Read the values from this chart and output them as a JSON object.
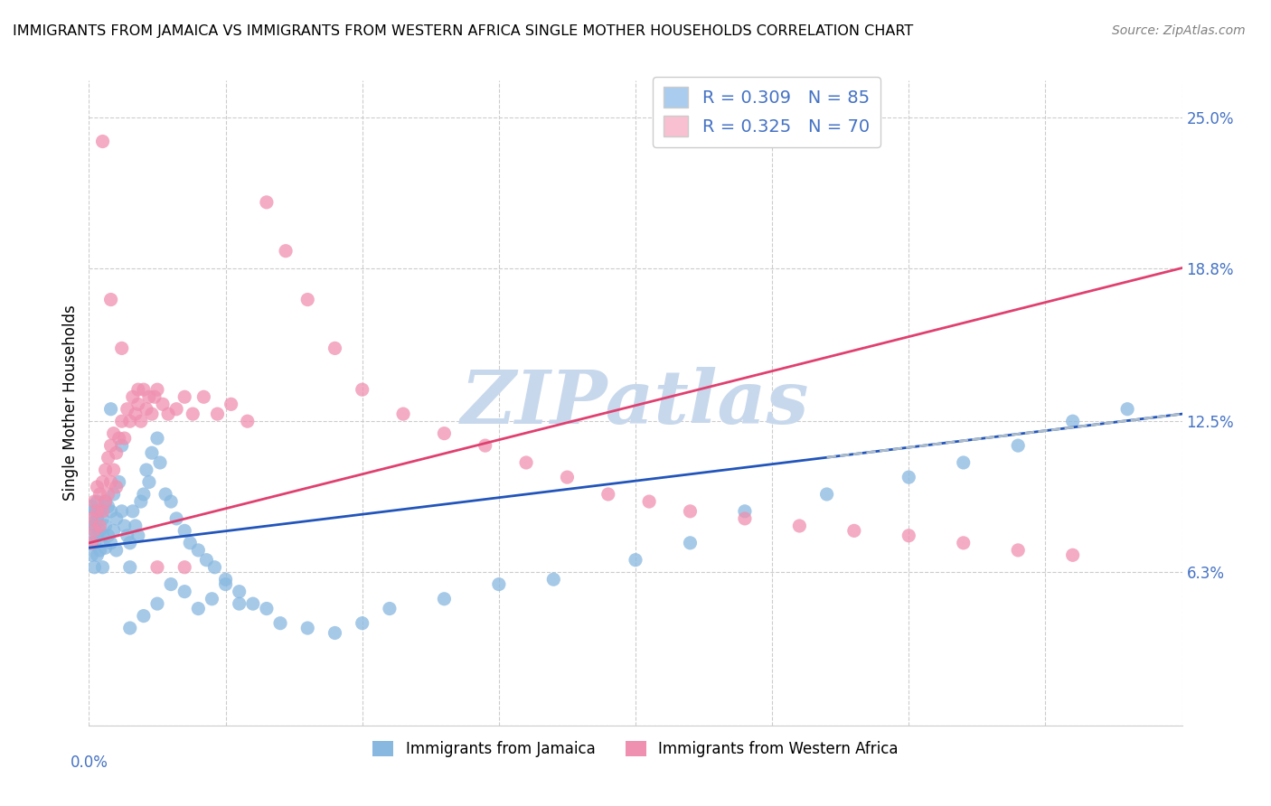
{
  "title": "IMMIGRANTS FROM JAMAICA VS IMMIGRANTS FROM WESTERN AFRICA SINGLE MOTHER HOUSEHOLDS CORRELATION CHART",
  "source": "Source: ZipAtlas.com",
  "ylabel": "Single Mother Households",
  "xlim": [
    0.0,
    0.4
  ],
  "ylim": [
    0.0,
    0.265
  ],
  "jamaica_scatter_color": "#88b8e0",
  "western_africa_scatter_color": "#f090b0",
  "jamaica_legend_color": "#aaccee",
  "western_africa_legend_color": "#f8c0d0",
  "jamaica_line_color": "#2255bb",
  "western_africa_line_color": "#e04070",
  "dashed_line_color": "#aabbcc",
  "watermark_text": "ZIPatlas",
  "watermark_color": "#c8d8ec",
  "legend_text_color": "#4472c4",
  "right_axis_color": "#4472c4",
  "jamaica_trend_y0": 0.073,
  "jamaica_trend_y1": 0.128,
  "western_africa_trend_y0": 0.075,
  "western_africa_trend_y1": 0.188,
  "dashed_trend_x0": 0.27,
  "dashed_trend_x1": 0.4,
  "jamaica_x": [
    0.001,
    0.001,
    0.001,
    0.001,
    0.002,
    0.002,
    0.002,
    0.002,
    0.003,
    0.003,
    0.003,
    0.003,
    0.004,
    0.004,
    0.004,
    0.005,
    0.005,
    0.005,
    0.006,
    0.006,
    0.006,
    0.007,
    0.007,
    0.008,
    0.008,
    0.009,
    0.009,
    0.01,
    0.01,
    0.011,
    0.012,
    0.012,
    0.013,
    0.014,
    0.015,
    0.015,
    0.016,
    0.017,
    0.018,
    0.019,
    0.02,
    0.021,
    0.022,
    0.023,
    0.025,
    0.026,
    0.028,
    0.03,
    0.032,
    0.035,
    0.037,
    0.04,
    0.043,
    0.046,
    0.05,
    0.055,
    0.06,
    0.065,
    0.07,
    0.08,
    0.09,
    0.1,
    0.11,
    0.13,
    0.15,
    0.17,
    0.2,
    0.22,
    0.24,
    0.27,
    0.3,
    0.32,
    0.34,
    0.36,
    0.38,
    0.03,
    0.025,
    0.02,
    0.015,
    0.035,
    0.04,
    0.045,
    0.05,
    0.055,
    0.008
  ],
  "jamaica_y": [
    0.083,
    0.09,
    0.078,
    0.07,
    0.088,
    0.082,
    0.075,
    0.065,
    0.092,
    0.085,
    0.078,
    0.07,
    0.088,
    0.08,
    0.072,
    0.085,
    0.078,
    0.065,
    0.092,
    0.082,
    0.073,
    0.09,
    0.078,
    0.088,
    0.075,
    0.095,
    0.08,
    0.085,
    0.072,
    0.1,
    0.115,
    0.088,
    0.082,
    0.078,
    0.075,
    0.065,
    0.088,
    0.082,
    0.078,
    0.092,
    0.095,
    0.105,
    0.1,
    0.112,
    0.118,
    0.108,
    0.095,
    0.092,
    0.085,
    0.08,
    0.075,
    0.072,
    0.068,
    0.065,
    0.06,
    0.055,
    0.05,
    0.048,
    0.042,
    0.04,
    0.038,
    0.042,
    0.048,
    0.052,
    0.058,
    0.06,
    0.068,
    0.075,
    0.088,
    0.095,
    0.102,
    0.108,
    0.115,
    0.125,
    0.13,
    0.058,
    0.05,
    0.045,
    0.04,
    0.055,
    0.048,
    0.052,
    0.058,
    0.05,
    0.13
  ],
  "western_africa_x": [
    0.001,
    0.001,
    0.002,
    0.002,
    0.003,
    0.003,
    0.004,
    0.004,
    0.005,
    0.005,
    0.006,
    0.006,
    0.007,
    0.007,
    0.008,
    0.008,
    0.009,
    0.009,
    0.01,
    0.01,
    0.011,
    0.012,
    0.013,
    0.014,
    0.015,
    0.016,
    0.017,
    0.018,
    0.019,
    0.02,
    0.021,
    0.022,
    0.023,
    0.024,
    0.025,
    0.027,
    0.029,
    0.032,
    0.035,
    0.038,
    0.042,
    0.047,
    0.052,
    0.058,
    0.065,
    0.072,
    0.08,
    0.09,
    0.1,
    0.115,
    0.13,
    0.145,
    0.16,
    0.175,
    0.19,
    0.205,
    0.22,
    0.24,
    0.26,
    0.28,
    0.3,
    0.32,
    0.34,
    0.36,
    0.005,
    0.008,
    0.012,
    0.018,
    0.025,
    0.035
  ],
  "western_africa_y": [
    0.085,
    0.075,
    0.092,
    0.08,
    0.098,
    0.088,
    0.095,
    0.082,
    0.1,
    0.088,
    0.105,
    0.092,
    0.11,
    0.095,
    0.115,
    0.1,
    0.12,
    0.105,
    0.112,
    0.098,
    0.118,
    0.125,
    0.118,
    0.13,
    0.125,
    0.135,
    0.128,
    0.132,
    0.125,
    0.138,
    0.13,
    0.135,
    0.128,
    0.135,
    0.138,
    0.132,
    0.128,
    0.13,
    0.135,
    0.128,
    0.135,
    0.128,
    0.132,
    0.125,
    0.215,
    0.195,
    0.175,
    0.155,
    0.138,
    0.128,
    0.12,
    0.115,
    0.108,
    0.102,
    0.095,
    0.092,
    0.088,
    0.085,
    0.082,
    0.08,
    0.078,
    0.075,
    0.072,
    0.07,
    0.24,
    0.175,
    0.155,
    0.138,
    0.065,
    0.065
  ],
  "grid_yticks": [
    0.0,
    0.063,
    0.125,
    0.188,
    0.25
  ],
  "grid_xticks": [
    0.0,
    0.05,
    0.1,
    0.15,
    0.2,
    0.25,
    0.3,
    0.35,
    0.4
  ]
}
